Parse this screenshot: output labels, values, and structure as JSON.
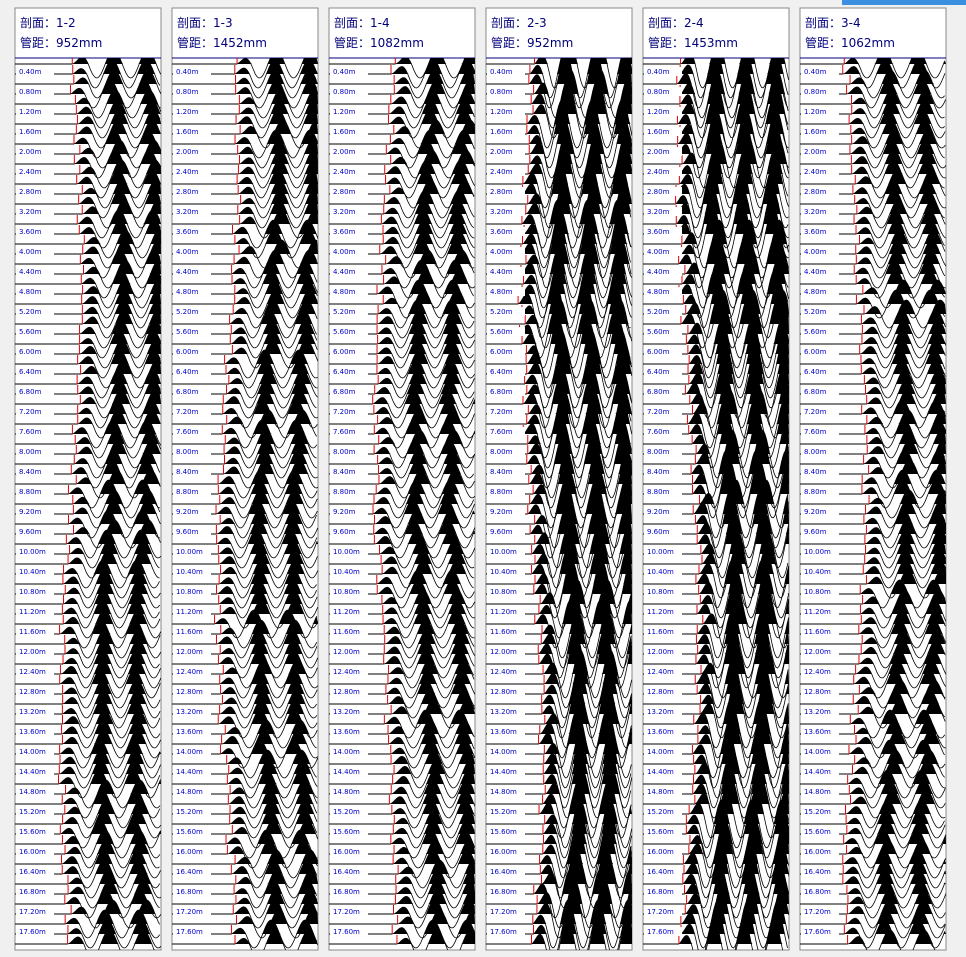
{
  "panels": [
    {
      "section": "剖面：1-2",
      "spacing": "管距：952mm"
    },
    {
      "section": "剖面：1-3",
      "spacing": "管距：1452mm"
    },
    {
      "section": "剖面：1-4",
      "spacing": "管距：1082mm"
    },
    {
      "section": "剖面：2-3",
      "spacing": "管距：952mm"
    },
    {
      "section": "剖面：2-4",
      "spacing": "管距：1453mm"
    },
    {
      "section": "剖面：3-4",
      "spacing": "管距：1062mm"
    }
  ],
  "depth_labels": [
    "0.40m",
    "0.80m",
    "1.20m",
    "1.60m",
    "2.00m",
    "2.40m",
    "2.80m",
    "3.20m",
    "3.60m",
    "4.00m",
    "4.40m",
    "4.80m",
    "5.20m",
    "5.60m",
    "6.00m",
    "6.40m",
    "6.80m",
    "7.20m",
    "7.60m",
    "8.00m",
    "8.40m",
    "8.80m",
    "9.20m",
    "9.60m",
    "10.00m",
    "10.40m",
    "10.80m",
    "11.20m",
    "11.60m",
    "12.00m",
    "12.40m",
    "12.80m",
    "13.20m",
    "13.60m",
    "14.00m",
    "14.40m",
    "14.80m",
    "15.20m",
    "15.60m",
    "16.00m",
    "16.40m",
    "16.80m",
    "17.20m",
    "17.60m"
  ]
}
